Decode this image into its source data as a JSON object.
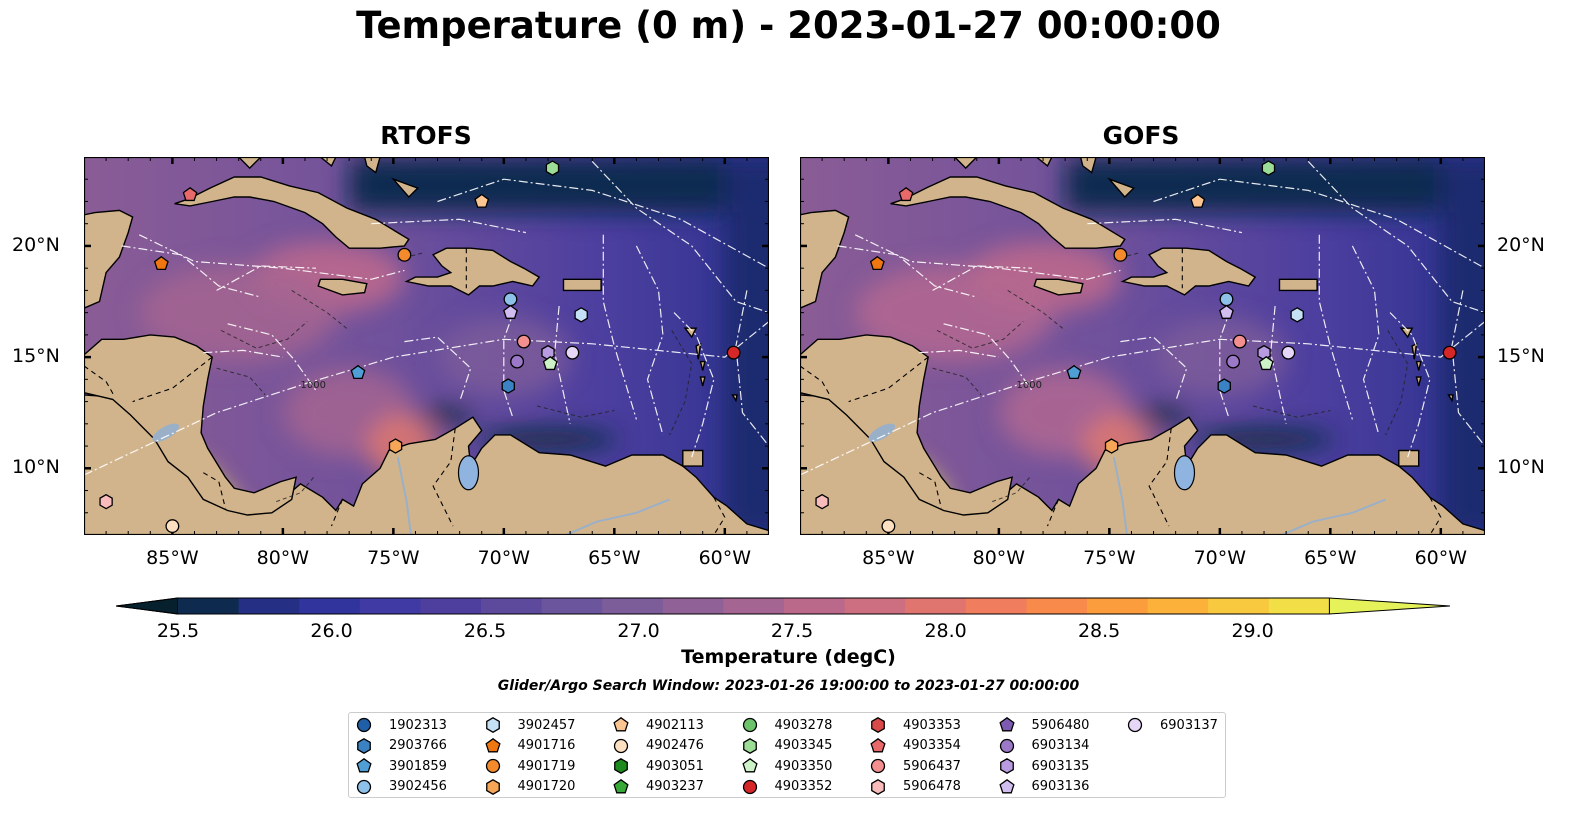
{
  "title": "Temperature (0 m) - 2023-01-27 00:00:00",
  "panels": [
    {
      "id": "rtofs",
      "title": "RTOFS"
    },
    {
      "id": "gofs",
      "title": "GOFS"
    }
  ],
  "map": {
    "lon_range": [
      -89,
      -58
    ],
    "lat_range": [
      7,
      24
    ],
    "lon_ticks": [
      "85°W",
      "80°W",
      "75°W",
      "70°W",
      "65°W",
      "60°W"
    ],
    "lat_ticks": [
      "20°N",
      "15°N",
      "10°N"
    ],
    "land_color": "#d2b48c",
    "ocean_main_color": "#6a4c9c",
    "contour_label": "1000"
  },
  "colorbar": {
    "min": 25.5,
    "max": 29.25,
    "ticks": [
      "25.5",
      "26.0",
      "26.5",
      "27.0",
      "27.5",
      "28.0",
      "28.5",
      "29.0"
    ],
    "colors": [
      "#06202e",
      "#0e2b4f",
      "#253085",
      "#31349c",
      "#3f3aa4",
      "#4e3f9f",
      "#5d4a9d",
      "#6b559c",
      "#7d5c9a",
      "#8f6196",
      "#a56592",
      "#bb698b",
      "#cd6f80",
      "#e07570",
      "#ef7d5e",
      "#f88a4b",
      "#fb9c3d",
      "#fbb13a",
      "#f8c83f",
      "#f2df47",
      "#e6f25a"
    ],
    "label": "Temperature (degC)"
  },
  "search_window": "Glider/Argo Search Window: 2023-01-26 19:00:00 to 2023-01-27 00:00:00",
  "legend": [
    {
      "id": "1902313",
      "marker": "circle",
      "color": "#1f5fa8"
    },
    {
      "id": "2903766",
      "marker": "hexagon",
      "color": "#3a82c4"
    },
    {
      "id": "3901859",
      "marker": "pentagon",
      "color": "#4f9ed6"
    },
    {
      "id": "3902456",
      "marker": "circle",
      "color": "#8ec1ea"
    },
    {
      "id": "3902457",
      "marker": "hexagon",
      "color": "#c5e1f6"
    },
    {
      "id": "4901716",
      "marker": "pentagon",
      "color": "#ef7711"
    },
    {
      "id": "4901719",
      "marker": "circle",
      "color": "#f38a2b"
    },
    {
      "id": "4901720",
      "marker": "hexagon",
      "color": "#f7a556"
    },
    {
      "id": "4902113",
      "marker": "pentagon",
      "color": "#fbc592"
    },
    {
      "id": "4902476",
      "marker": "circle",
      "color": "#fde0c2"
    },
    {
      "id": "4903051",
      "marker": "hexagon",
      "color": "#1c8a1c"
    },
    {
      "id": "4903237",
      "marker": "pentagon",
      "color": "#38a838"
    },
    {
      "id": "4903278",
      "marker": "circle",
      "color": "#6cc36c"
    },
    {
      "id": "4903345",
      "marker": "hexagon",
      "color": "#9ddc96"
    },
    {
      "id": "4903350",
      "marker": "pentagon",
      "color": "#cdf2c8"
    },
    {
      "id": "4903352",
      "marker": "circle",
      "color": "#d62728"
    },
    {
      "id": "4903353",
      "marker": "hexagon",
      "color": "#d8494a"
    },
    {
      "id": "4903354",
      "marker": "pentagon",
      "color": "#e8696a"
    },
    {
      "id": "5906437",
      "marker": "circle",
      "color": "#f3908f"
    },
    {
      "id": "5906478",
      "marker": "hexagon",
      "color": "#f7bcbb"
    },
    {
      "id": "5906480",
      "marker": "pentagon",
      "color": "#7d5bb3"
    },
    {
      "id": "6903134",
      "marker": "circle",
      "color": "#9b79c8"
    },
    {
      "id": "6903135",
      "marker": "hexagon",
      "color": "#b89be0"
    },
    {
      "id": "6903136",
      "marker": "pentagon",
      "color": "#d2bdf0"
    },
    {
      "id": "6903137",
      "marker": "circle",
      "color": "#e6d6f8"
    }
  ],
  "observations": [
    {
      "id": "4903354",
      "lon": -84.2,
      "lat": 22.3
    },
    {
      "id": "4902113",
      "lon": -71.0,
      "lat": 22.0
    },
    {
      "id": "4903345",
      "lon": -67.8,
      "lat": 23.5
    },
    {
      "id": "4901716",
      "lon": -85.5,
      "lat": 19.2
    },
    {
      "id": "4901719",
      "lon": -74.5,
      "lat": 19.6
    },
    {
      "id": "3902456",
      "lon": -69.7,
      "lat": 17.6
    },
    {
      "id": "6903136",
      "lon": -69.7,
      "lat": 17.0
    },
    {
      "id": "3902457",
      "lon": -66.5,
      "lat": 16.9
    },
    {
      "id": "5906437",
      "lon": -69.1,
      "lat": 15.7
    },
    {
      "id": "6903135",
      "lon": -68.0,
      "lat": 15.2
    },
    {
      "id": "6903137",
      "lon": -66.9,
      "lat": 15.2
    },
    {
      "id": "6903134",
      "lon": -69.4,
      "lat": 14.8
    },
    {
      "id": "4903350",
      "lon": -67.9,
      "lat": 14.7
    },
    {
      "id": "3901859",
      "lon": -76.6,
      "lat": 14.3
    },
    {
      "id": "2903766",
      "lon": -69.8,
      "lat": 13.7
    },
    {
      "id": "4903352",
      "lon": -59.6,
      "lat": 15.2
    },
    {
      "id": "4901720",
      "lon": -74.9,
      "lat": 11.0
    },
    {
      "id": "5906478",
      "lon": -88.0,
      "lat": 8.5
    },
    {
      "id": "4902476",
      "lon": -85.0,
      "lat": 7.4
    }
  ]
}
